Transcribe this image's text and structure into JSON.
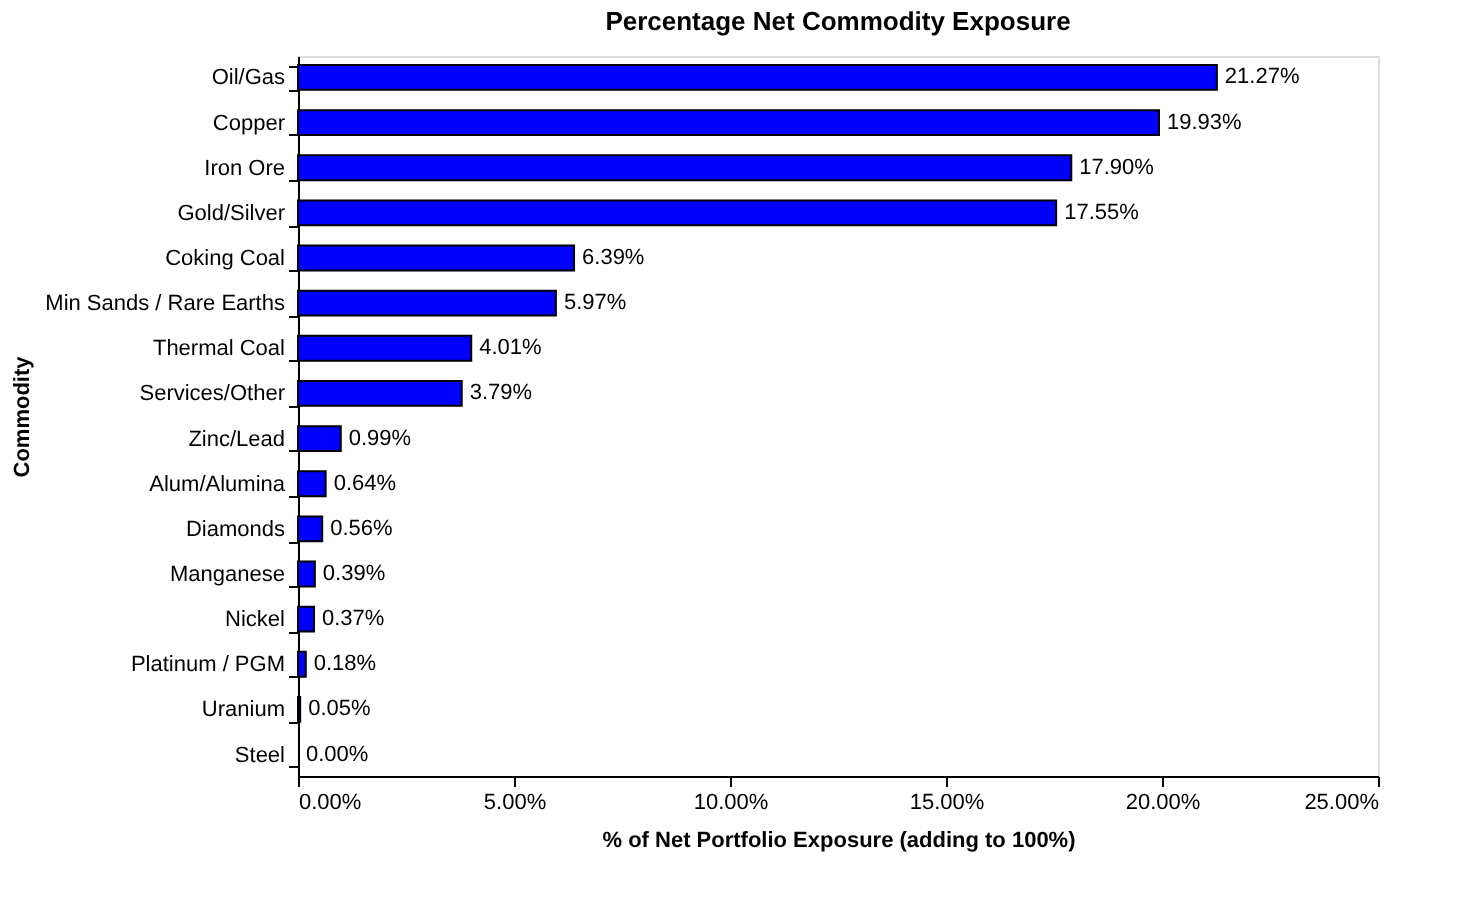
{
  "chart_data": {
    "type": "bar",
    "orientation": "horizontal",
    "title": "Percentage Net Commodity Exposure",
    "xlabel": "% of Net Portfolio Exposure (adding to 100%)",
    "ylabel": "Commodity",
    "categories": [
      "Oil/Gas",
      "Copper",
      "Iron Ore",
      "Gold/Silver",
      "Coking Coal",
      "Min Sands / Rare Earths",
      "Thermal Coal",
      "Services/Other",
      "Zinc/Lead",
      "Alum/Alumina",
      "Diamonds",
      "Manganese",
      "Nickel",
      "Platinum / PGM",
      "Uranium",
      "Steel"
    ],
    "values": [
      21.27,
      19.93,
      17.9,
      17.55,
      6.39,
      5.97,
      4.01,
      3.79,
      0.99,
      0.64,
      0.56,
      0.39,
      0.37,
      0.18,
      0.05,
      0.0
    ],
    "value_labels": [
      "21.27%",
      "19.93%",
      "17.90%",
      "17.55%",
      "6.39%",
      "5.97%",
      "4.01%",
      "3.79%",
      "0.99%",
      "0.64%",
      "0.56%",
      "0.39%",
      "0.37%",
      "0.18%",
      "0.05%",
      "0.00%"
    ],
    "color": "#0000ff",
    "xlim": [
      0,
      25
    ],
    "xticks": [
      {
        "value": 0,
        "label": "0.00%"
      },
      {
        "value": 5,
        "label": "5.00%"
      },
      {
        "value": 10,
        "label": "10.00%"
      },
      {
        "value": 15,
        "label": "15.00%"
      },
      {
        "value": 20,
        "label": "20.00%"
      },
      {
        "value": 25,
        "label": "25.00%"
      }
    ],
    "grid": false
  }
}
